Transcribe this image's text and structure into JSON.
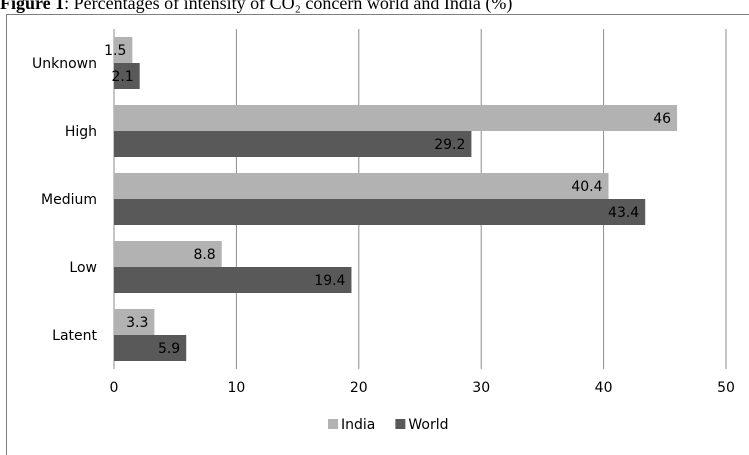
{
  "caption": {
    "prefix": "Figure 1",
    "text": ": Percentages of intensity of CO₂ concern world and India (%)"
  },
  "chart_data": {
    "type": "bar",
    "orientation": "horizontal",
    "categories": [
      "Unknown",
      "High",
      "Medium",
      "Low",
      "Latent"
    ],
    "series": [
      {
        "name": "India",
        "values": [
          1.5,
          46,
          40.4,
          8.8,
          3.3
        ],
        "color": "#b2b2b2"
      },
      {
        "name": "World",
        "values": [
          2.1,
          29.2,
          43.4,
          19.4,
          5.9
        ],
        "color": "#595959"
      }
    ],
    "xlim": [
      0,
      50
    ],
    "xticks": [
      "0",
      "10",
      "20",
      "30",
      "40",
      "50"
    ],
    "grid": true,
    "legend": "bottom"
  }
}
